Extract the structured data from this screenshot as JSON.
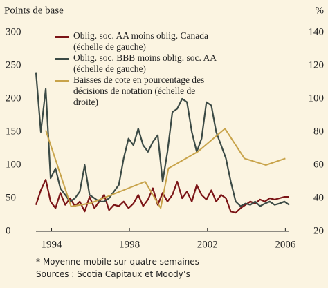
{
  "chart_data": {
    "type": "line",
    "y_label": "Points de base",
    "y2_label": "%",
    "xlim": [
      1993.2,
      2006.2
    ],
    "xticks": [
      1994,
      1998,
      2002,
      2006
    ],
    "ylim": [
      0,
      300
    ],
    "yticks": [
      0,
      50,
      100,
      150,
      200,
      250,
      300
    ],
    "y2lim": [
      20,
      140
    ],
    "y2ticks": [
      20,
      40,
      60,
      80,
      100,
      120,
      140
    ],
    "series": [
      {
        "name": "Oblig. soc. AA moins oblig. Canada (échelle de gauche)",
        "color": "#7b1416",
        "x": [
          1993.2,
          1993.45,
          1993.7,
          1993.95,
          1994.2,
          1994.45,
          1994.7,
          1994.95,
          1995.2,
          1995.45,
          1995.7,
          1995.95,
          1996.2,
          1996.45,
          1996.7,
          1996.95,
          1997.2,
          1997.45,
          1997.7,
          1997.95,
          1998.2,
          1998.45,
          1998.7,
          1998.95,
          1999.2,
          1999.45,
          1999.7,
          1999.95,
          2000.2,
          2000.45,
          2000.7,
          2000.95,
          2001.2,
          2001.45,
          2001.7,
          2001.95,
          2002.2,
          2002.45,
          2002.7,
          2002.95,
          2003.2,
          2003.45,
          2003.7,
          2003.95,
          2004.2,
          2004.45,
          2004.7,
          2004.95,
          2005.2,
          2005.45,
          2005.7,
          2005.95,
          2006.2
        ],
        "values": [
          40,
          62,
          78,
          45,
          35,
          58,
          40,
          50,
          38,
          45,
          30,
          52,
          35,
          45,
          55,
          32,
          40,
          38,
          45,
          35,
          42,
          55,
          38,
          48,
          65,
          40,
          58,
          45,
          55,
          75,
          50,
          60,
          45,
          70,
          55,
          48,
          62,
          45,
          55,
          50,
          30,
          28,
          35,
          40,
          45,
          42,
          48,
          45,
          50,
          48,
          50,
          52,
          52
        ]
      },
      {
        "name": "Oblig. soc. BBB moins oblig. soc. AA (échelle de gauche)",
        "color": "#3b4a45",
        "x": [
          1993.2,
          1993.45,
          1993.7,
          1993.95,
          1994.2,
          1994.45,
          1994.7,
          1994.95,
          1995.2,
          1995.45,
          1995.7,
          1995.95,
          1996.2,
          1996.45,
          1996.7,
          1996.95,
          1997.2,
          1997.45,
          1997.7,
          1997.95,
          1998.2,
          1998.45,
          1998.7,
          1998.95,
          1999.2,
          1999.45,
          1999.7,
          1999.95,
          2000.2,
          2000.45,
          2000.7,
          2000.95,
          2001.2,
          2001.45,
          2001.7,
          2001.95,
          2002.2,
          2002.45,
          2002.7,
          2002.95,
          2003.2,
          2003.45,
          2003.7,
          2003.95,
          2004.2,
          2004.45,
          2004.7,
          2004.95,
          2005.2,
          2005.45,
          2005.7,
          2005.95,
          2006.2
        ],
        "values": [
          240,
          150,
          215,
          80,
          95,
          65,
          55,
          45,
          50,
          60,
          100,
          55,
          50,
          45,
          45,
          50,
          60,
          70,
          110,
          140,
          130,
          155,
          130,
          120,
          135,
          145,
          75,
          120,
          180,
          185,
          200,
          195,
          150,
          120,
          140,
          195,
          190,
          150,
          130,
          110,
          75,
          45,
          38,
          42,
          40,
          45,
          38,
          42,
          45,
          40,
          42,
          45,
          40
        ]
      },
      {
        "name": "Baisses de cote en pourcentage des décisions de notation (échelle de droite)",
        "color": "#c8a34a",
        "axis": "y2",
        "x": [
          1993.7,
          1995,
          1996,
          1998.8,
          1999.6,
          2000,
          2001.5,
          2002.9,
          2003.9,
          2005,
          2006
        ],
        "values": [
          81,
          35,
          37,
          50,
          34,
          58,
          68,
          82,
          64,
          60,
          64
        ]
      }
    ],
    "notes": [
      "* Moyenne mobile sur quatre semaines",
      "Sources : Scotia Capitaux et Moody’s"
    ]
  }
}
